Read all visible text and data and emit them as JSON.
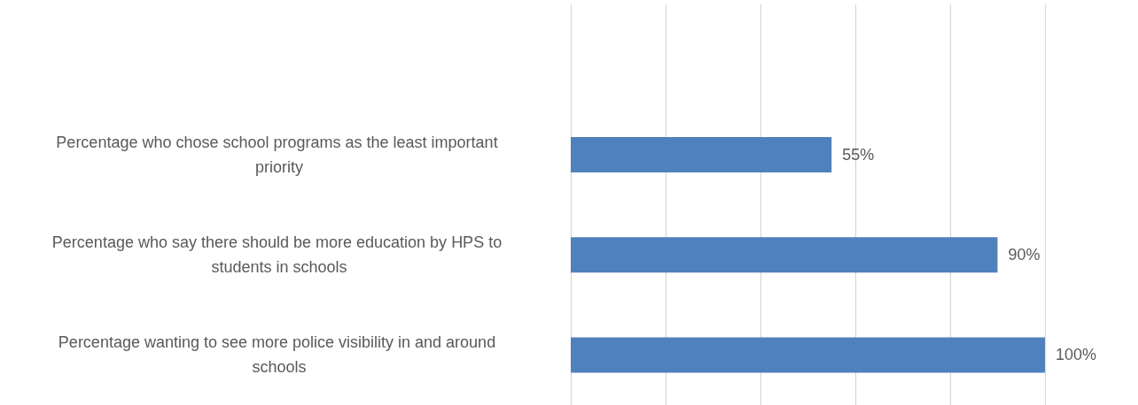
{
  "chart_data": {
    "type": "bar",
    "orientation": "horizontal",
    "categories": [
      null,
      "Percentage who chose school programs as the least important priority",
      "Percentage who say there should be more education by HPS to students in schools",
      "Percentage wanting to see more police visibility in and around schools"
    ],
    "values": [
      null,
      55,
      90,
      100
    ],
    "value_labels": [
      null,
      "55%",
      "90%",
      "100%"
    ],
    "color": "#4f81bd",
    "xlim": [
      0,
      100
    ],
    "xticks": [
      {
        "value": 0,
        "label": null
      },
      {
        "value": 20,
        "label": null
      },
      {
        "value": 40,
        "label": null
      },
      {
        "value": 60,
        "label": null
      },
      {
        "value": 80,
        "label": null
      },
      {
        "value": 100,
        "label": null
      }
    ],
    "tick_labels": "y",
    "grid": "x"
  }
}
